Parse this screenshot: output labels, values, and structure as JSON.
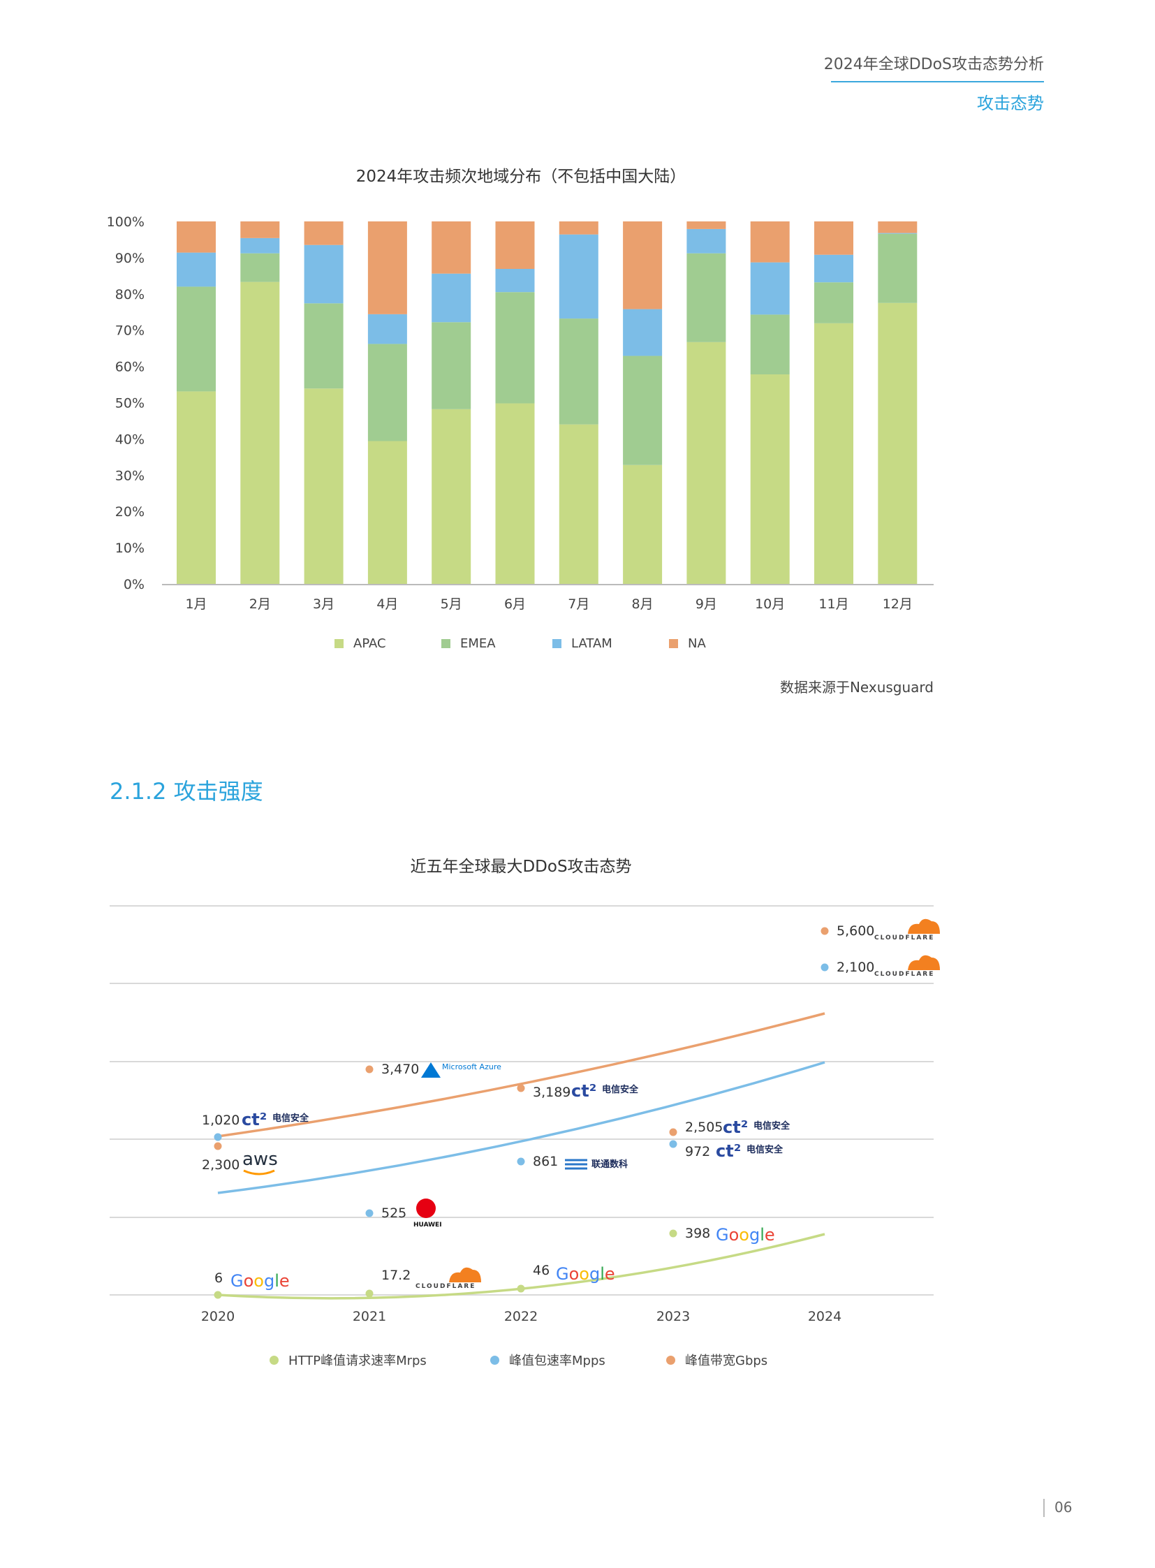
{
  "header": {
    "title": "2024年全球DDoS攻击态势分析",
    "subtitle": "攻击态势"
  },
  "section_heading": "2.1.2 攻击强度",
  "source_note": "数据来源于Nexusguard",
  "page_number": "06",
  "colors": {
    "APAC": "#c6da85",
    "EMEA": "#a0cc91",
    "LATAM": "#7cbde7",
    "NA": "#eaa06e",
    "accent": "#2aa3dc",
    "http": "#c6da85",
    "pps": "#7cbde7",
    "bw": "#eaa06e"
  },
  "chart_data": [
    {
      "type": "bar",
      "stacked": true,
      "title": "2024年攻击频次地域分布（不包括中国大陆）",
      "categories": [
        "1月",
        "2月",
        "3月",
        "4月",
        "5月",
        "6月",
        "7月",
        "8月",
        "9月",
        "10月",
        "11月",
        "12月"
      ],
      "yticks": [
        "0%",
        "10%",
        "20%",
        "30%",
        "40%",
        "50%",
        "60%",
        "70%",
        "80%",
        "90%",
        "100%"
      ],
      "ylim": [
        0,
        100
      ],
      "legend_position": "bottom",
      "series": [
        {
          "name": "APAC",
          "values": [
            53.1,
            83.3,
            53.9,
            39.4,
            48.2,
            49.8,
            44.0,
            32.8,
            66.7,
            57.8,
            71.9,
            77.5
          ]
        },
        {
          "name": "EMEA",
          "values": [
            28.9,
            7.9,
            23.5,
            26.8,
            24.0,
            30.7,
            29.2,
            30.1,
            24.5,
            16.5,
            11.3,
            19.1
          ]
        },
        {
          "name": "LATAM",
          "values": [
            9.4,
            4.2,
            16.1,
            8.2,
            13.4,
            6.4,
            23.2,
            12.9,
            6.7,
            14.4,
            7.6,
            0.2
          ]
        },
        {
          "name": "NA",
          "values": [
            8.6,
            4.6,
            6.5,
            25.6,
            14.4,
            13.1,
            3.6,
            24.2,
            2.1,
            11.3,
            9.2,
            3.2
          ]
        }
      ]
    },
    {
      "type": "line",
      "title": "近五年全球最大DDoS攻击态势",
      "x": [
        "2020",
        "2021",
        "2022",
        "2023",
        "2024"
      ],
      "grid": true,
      "legend_position": "bottom",
      "series": [
        {
          "name": "HTTP峰值请求速率Mrps",
          "color_key": "http",
          "points": [
            {
              "year": "2020",
              "value": "6",
              "vendor": "Google"
            },
            {
              "year": "2021",
              "value": "17.2",
              "vendor": "CLOUDFLARE"
            },
            {
              "year": "2022",
              "value": "46",
              "vendor": "Google"
            },
            {
              "year": "2023",
              "value": "398",
              "vendor": "Google"
            }
          ]
        },
        {
          "name": "峰值包速率Mpps",
          "color_key": "pps",
          "points": [
            {
              "year": "2020",
              "value": "1,020",
              "vendor": "电信安全"
            },
            {
              "year": "2021",
              "value": "525",
              "vendor": "HUAWEI"
            },
            {
              "year": "2022",
              "value": "861",
              "vendor": "联通数科"
            },
            {
              "year": "2023",
              "value": "972",
              "vendor": "电信安全"
            },
            {
              "year": "2024",
              "value": "2,100",
              "vendor": "CLOUDFLARE"
            }
          ]
        },
        {
          "name": "峰值带宽Gbps",
          "color_key": "bw",
          "points": [
            {
              "year": "2020",
              "value": "2,300",
              "vendor": "aws"
            },
            {
              "year": "2021",
              "value": "3,470",
              "vendor": "Microsoft Azure"
            },
            {
              "year": "2022",
              "value": "3,189",
              "vendor": "电信安全"
            },
            {
              "year": "2023",
              "value": "2,505",
              "vendor": "电信安全"
            },
            {
              "year": "2024",
              "value": "5,600",
              "vendor": "CLOUDFLARE"
            }
          ]
        }
      ]
    }
  ]
}
